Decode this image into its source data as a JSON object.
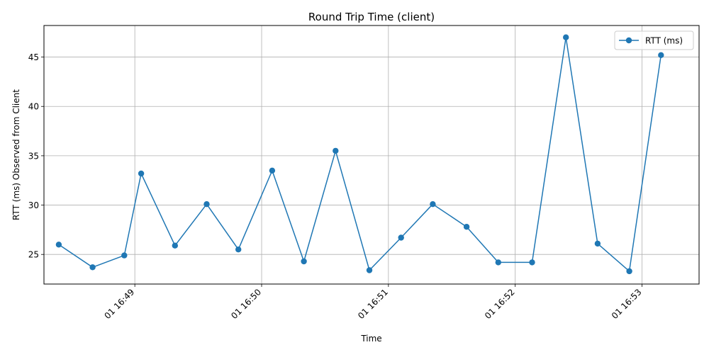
{
  "chart_data": {
    "type": "line",
    "title": "Round Trip Time (client)",
    "xlabel": "Time",
    "ylabel": "RTT (ms) Observed from Client",
    "x_ticks": [
      "01 16:49",
      "01 16:50",
      "01 16:51",
      "01 16:52",
      "01 16:53"
    ],
    "y_ticks": [
      25,
      30,
      35,
      40,
      45
    ],
    "xlim": [
      "16:48:17",
      "16:53:27"
    ],
    "ylim": [
      22.0,
      48.2
    ],
    "grid": true,
    "legend_position": "top-right",
    "series": [
      {
        "name": "RTT (ms)",
        "color": "#1f77b4",
        "marker": "circle",
        "x": [
          "16:48:24",
          "16:48:40",
          "16:48:55",
          "16:49:03",
          "16:49:19",
          "16:49:34",
          "16:49:49",
          "16:50:05",
          "16:50:20",
          "16:50:35",
          "16:50:51",
          "16:51:06",
          "16:51:21",
          "16:51:37",
          "16:51:52",
          "16:52:08",
          "16:52:24",
          "16:52:39",
          "16:52:54",
          "16:53:09"
        ],
        "values": [
          26.0,
          23.7,
          24.9,
          33.2,
          25.9,
          30.1,
          25.5,
          33.5,
          24.3,
          35.5,
          23.4,
          26.7,
          30.1,
          27.8,
          24.2,
          24.2,
          47.0,
          26.1,
          23.3,
          45.2
        ]
      }
    ]
  }
}
